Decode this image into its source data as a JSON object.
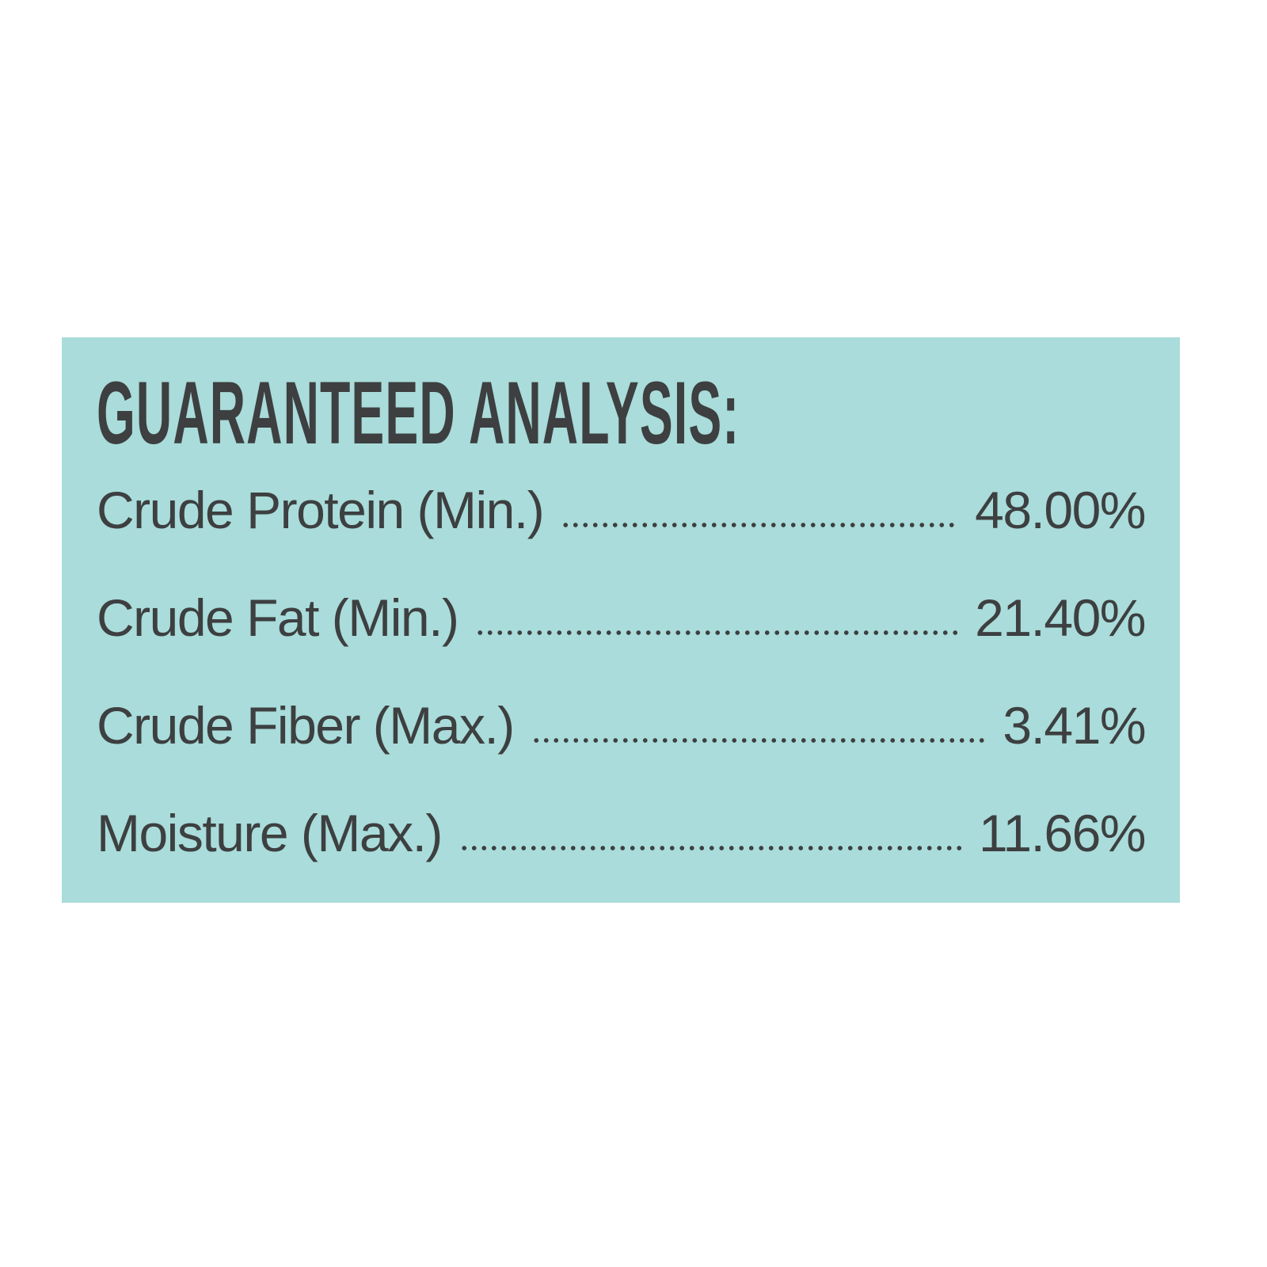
{
  "panel": {
    "background_color": "#a9dcda",
    "text_color": "#3d3f40",
    "title": "GUARANTEED ANALYSIS:",
    "rows": [
      {
        "label": "Crude Protein (Min.)",
        "value": "48.00%"
      },
      {
        "label": "Crude Fat (Min.)",
        "value": "21.40%"
      },
      {
        "label": "Crude Fiber (Max.)",
        "value": "3.41%"
      },
      {
        "label": "Moisture (Max.)",
        "value": "11.66%"
      }
    ]
  }
}
